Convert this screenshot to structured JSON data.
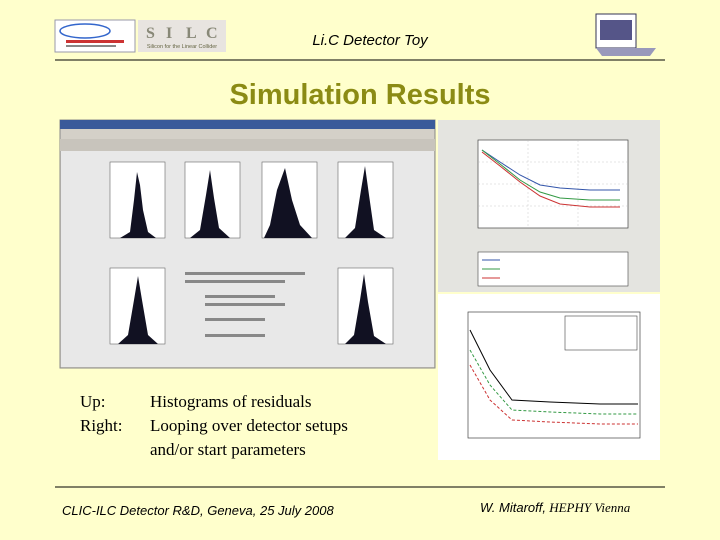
{
  "header": {
    "title": "Li.C Detector Toy",
    "silc_letters": [
      "S",
      "I",
      "L",
      "C"
    ],
    "silc_caption": "Silicon for the Linear Collider"
  },
  "slide": {
    "title": "Simulation Results",
    "notes": [
      {
        "label": "Up:",
        "lines": [
          "Histograms of residuals"
        ]
      },
      {
        "label": "Right:",
        "lines": [
          "Looping over detector setups",
          "and/or start parameters"
        ]
      }
    ]
  },
  "footer": {
    "left": "CLIC-ILC Detector R&D, Geneva, 25 July 2008",
    "author": "W. Mitaroff,",
    "institute": "HEPHY Vienna"
  }
}
